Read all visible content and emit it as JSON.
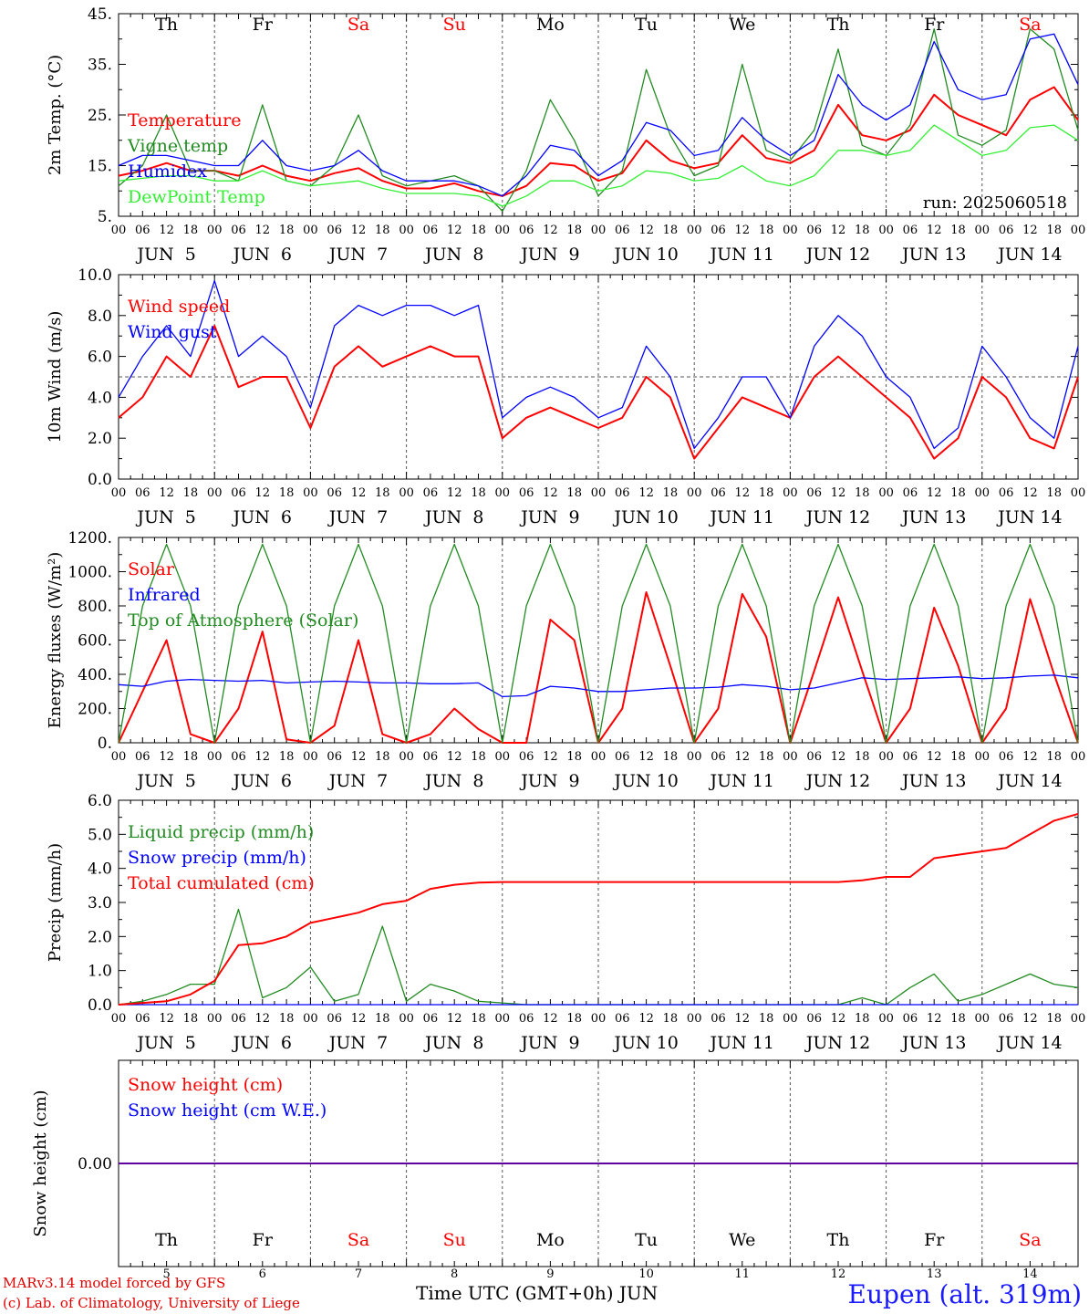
{
  "colors": {
    "red": "#ff0000",
    "green": "#228b22",
    "blue": "#0000ff",
    "lightgreen": "#33ee33",
    "axis": "#000000",
    "day_weekend": "#ff0000",
    "day_weekday": "#000000"
  },
  "days": [
    {
      "name": "Th",
      "weekend": false
    },
    {
      "name": "Fr",
      "weekend": false
    },
    {
      "name": "Sa",
      "weekend": true
    },
    {
      "name": "Su",
      "weekend": true
    },
    {
      "name": "Mo",
      "weekend": false
    },
    {
      "name": "Tu",
      "weekend": false
    },
    {
      "name": "We",
      "weekend": false
    },
    {
      "name": "Th",
      "weekend": false
    },
    {
      "name": "Fr",
      "weekend": false
    },
    {
      "name": "Sa",
      "weekend": true
    }
  ],
  "hour_tick_labels": [
    "00",
    "06",
    "12",
    "18"
  ],
  "final_tick_label": "00",
  "date_labels": [
    "JUN  5",
    "JUN  6",
    "JUN  7",
    "JUN  8",
    "JUN  9",
    "JUN 10",
    "JUN 11",
    "JUN 12",
    "JUN 13",
    "JUN 14"
  ],
  "day_numbers": [
    "5",
    "6",
    "7",
    "8",
    "9",
    "10",
    "11",
    "12",
    "13",
    "14"
  ],
  "footer": {
    "model": "MARv3.14 model forced by GFS",
    "credit": "(c) Lab. of Climatology, University of Liege",
    "xlabel": "Time UTC (GMT+0h) JUN",
    "station": "Eupen (alt. 319m)"
  },
  "chart_data": [
    {
      "type": "line",
      "ylabel": "2m Temp. (°C)",
      "ylim": [
        5,
        45
      ],
      "yticks": [
        5,
        15,
        25,
        35,
        45
      ],
      "ytick_labels": [
        "5.",
        "15.",
        "25.",
        "35.",
        "45."
      ],
      "annotation": "run: 2025060518",
      "x_hours": [
        0,
        6,
        12,
        18,
        24,
        30,
        36,
        42,
        48,
        54,
        60,
        66,
        72,
        78,
        84,
        90,
        96,
        102,
        108,
        114,
        120,
        126,
        132,
        138,
        144,
        150,
        156,
        162,
        168,
        174,
        180,
        186,
        192,
        198,
        204,
        210,
        216,
        222,
        228,
        234,
        240
      ],
      "series": [
        {
          "name": "Temperature",
          "color": "red",
          "values": [
            13,
            14,
            15.5,
            14,
            14,
            13,
            15,
            13,
            12,
            13.5,
            14.5,
            12,
            10.5,
            10.5,
            11.5,
            10,
            9,
            11,
            15.5,
            15,
            12,
            13.5,
            20,
            16,
            14.5,
            15.5,
            21,
            16.5,
            15.5,
            18,
            27,
            21,
            20,
            22,
            29,
            25,
            23,
            21,
            28,
            30.5,
            24
          ]
        },
        {
          "name": "Vigne temp",
          "color": "green",
          "values": [
            11,
            15,
            25,
            14,
            14,
            12,
            27,
            12,
            11,
            15,
            25,
            13,
            11,
            12,
            13,
            11,
            6,
            14,
            28,
            20,
            9,
            14,
            34,
            21,
            13,
            15,
            35,
            18,
            16,
            22,
            38,
            19,
            17,
            23,
            42,
            21,
            19,
            22,
            42,
            38,
            22
          ]
        },
        {
          "name": "Humidex",
          "color": "blue",
          "values": [
            15,
            17,
            17,
            16,
            15,
            15,
            20,
            15,
            14,
            15,
            18,
            14,
            12,
            12,
            12,
            11,
            9,
            13,
            19,
            18,
            13,
            16,
            23.5,
            22,
            17,
            18,
            24.5,
            20,
            17,
            20,
            33,
            27,
            24,
            27,
            39.5,
            30,
            28,
            29,
            40,
            41,
            31
          ]
        },
        {
          "name": "DewPoint Temp",
          "color": "lightgreen",
          "values": [
            12,
            12.5,
            13,
            13,
            12,
            12,
            14,
            12,
            11,
            11.5,
            12,
            10.5,
            9.5,
            9.5,
            9.5,
            9,
            7,
            9,
            12,
            12,
            10,
            11,
            14,
            13.5,
            12,
            12.5,
            15,
            12,
            11,
            13,
            18,
            18,
            17,
            18,
            23,
            20,
            17,
            18,
            22.5,
            23,
            20
          ]
        }
      ]
    },
    {
      "type": "line",
      "ylabel": "10m Wind (m/s)",
      "ylim": [
        0,
        10
      ],
      "yticks": [
        0,
        2,
        4,
        6,
        8,
        10
      ],
      "ytick_labels": [
        "0.0",
        "2.0",
        "4.0",
        "6.0",
        "8.0",
        "10.0"
      ],
      "reference_line": 5,
      "x_hours": [
        0,
        6,
        12,
        18,
        24,
        30,
        36,
        42,
        48,
        54,
        60,
        66,
        72,
        78,
        84,
        90,
        96,
        102,
        108,
        114,
        120,
        126,
        132,
        138,
        144,
        150,
        156,
        162,
        168,
        174,
        180,
        186,
        192,
        198,
        204,
        210,
        216,
        222,
        228,
        234,
        240
      ],
      "series": [
        {
          "name": "Wind speed",
          "color": "red",
          "values": [
            3,
            4,
            6,
            5,
            7.5,
            4.5,
            5,
            5,
            2.5,
            5.5,
            6.5,
            5.5,
            6,
            6.5,
            6,
            6,
            2,
            3,
            3.5,
            3,
            2.5,
            3,
            5,
            4,
            1,
            2.5,
            4,
            3.5,
            3,
            5,
            6,
            5,
            4,
            3,
            1,
            2,
            5,
            4,
            2,
            1.5,
            5
          ]
        },
        {
          "name": "Wind gust",
          "color": "blue",
          "values": [
            4,
            6,
            7.5,
            6,
            9.7,
            6,
            7,
            6,
            3.5,
            7.5,
            8.5,
            8,
            8.5,
            8.5,
            8,
            8.5,
            3,
            4,
            4.5,
            4,
            3,
            3.5,
            6.5,
            5,
            1.5,
            3,
            5,
            5,
            3,
            6.5,
            8,
            7,
            5,
            4,
            1.5,
            2.5,
            6.5,
            5,
            3,
            2,
            6.5
          ]
        }
      ]
    },
    {
      "type": "line",
      "ylabel": "Energy fluxes (W/m²)",
      "ylim": [
        0,
        1200
      ],
      "yticks": [
        0,
        200,
        400,
        600,
        800,
        1000,
        1200
      ],
      "ytick_labels": [
        "0.",
        "200.",
        "400.",
        "600.",
        "800.",
        "1000.",
        "1200."
      ],
      "x_hours": [
        0,
        6,
        12,
        18,
        24,
        30,
        36,
        42,
        48,
        54,
        60,
        66,
        72,
        78,
        84,
        90,
        96,
        102,
        108,
        114,
        120,
        126,
        132,
        138,
        144,
        150,
        156,
        162,
        168,
        174,
        180,
        186,
        192,
        198,
        204,
        210,
        216,
        222,
        228,
        234,
        240
      ],
      "series": [
        {
          "name": "Solar",
          "color": "red",
          "values": [
            0,
            300,
            600,
            50,
            0,
            200,
            650,
            20,
            0,
            100,
            600,
            50,
            0,
            50,
            200,
            80,
            0,
            0,
            720,
            600,
            0,
            200,
            880,
            450,
            0,
            200,
            870,
            620,
            0,
            420,
            850,
            420,
            0,
            200,
            790,
            450,
            0,
            200,
            840,
            400,
            0
          ]
        },
        {
          "name": "Infrared",
          "color": "blue",
          "values": [
            340,
            330,
            360,
            370,
            365,
            360,
            365,
            350,
            355,
            360,
            355,
            350,
            350,
            345,
            345,
            350,
            270,
            275,
            330,
            320,
            300,
            300,
            310,
            320,
            320,
            325,
            340,
            330,
            310,
            320,
            350,
            380,
            370,
            375,
            380,
            385,
            375,
            380,
            390,
            395,
            380
          ]
        },
        {
          "name": "Top of Atmosphere (Solar)",
          "color": "green",
          "values": [
            0,
            800,
            1160,
            800,
            0,
            800,
            1160,
            800,
            0,
            800,
            1160,
            800,
            0,
            800,
            1160,
            800,
            0,
            800,
            1160,
            800,
            0,
            800,
            1160,
            800,
            0,
            800,
            1160,
            800,
            0,
            800,
            1160,
            800,
            0,
            800,
            1160,
            800,
            0,
            800,
            1160,
            800,
            0
          ]
        }
      ]
    },
    {
      "type": "line",
      "ylabel": "Precip (mm/h)",
      "ylim": [
        0,
        6
      ],
      "yticks": [
        0,
        1,
        2,
        3,
        4,
        5,
        6
      ],
      "ytick_labels": [
        "0.0",
        "1.0",
        "2.0",
        "3.0",
        "4.0",
        "5.0",
        "6.0"
      ],
      "x_hours": [
        0,
        6,
        12,
        18,
        24,
        30,
        36,
        42,
        48,
        54,
        60,
        66,
        72,
        78,
        84,
        90,
        96,
        102,
        108,
        114,
        120,
        126,
        132,
        138,
        144,
        150,
        156,
        162,
        168,
        174,
        180,
        186,
        192,
        198,
        204,
        210,
        216,
        222,
        228,
        234,
        240
      ],
      "series": [
        {
          "name": "Liquid precip (mm/h)",
          "color": "green",
          "values": [
            0,
            0.1,
            0.3,
            0.6,
            0.6,
            2.8,
            0.2,
            0.5,
            1.1,
            0.1,
            0.3,
            2.3,
            0.1,
            0.6,
            0.4,
            0.1,
            0.05,
            0,
            0,
            0,
            0,
            0,
            0,
            0,
            0,
            0,
            0,
            0,
            0,
            0,
            0,
            0.2,
            0,
            0.5,
            0.9,
            0.1,
            0.3,
            0.6,
            0.9,
            0.6,
            0.5
          ]
        },
        {
          "name": "Snow precip (mm/h)",
          "color": "blue",
          "values": [
            0,
            0,
            0,
            0,
            0,
            0,
            0,
            0,
            0,
            0,
            0,
            0,
            0,
            0,
            0,
            0,
            0,
            0,
            0,
            0,
            0,
            0,
            0,
            0,
            0,
            0,
            0,
            0,
            0,
            0,
            0,
            0,
            0,
            0,
            0,
            0,
            0,
            0,
            0,
            0,
            0
          ]
        },
        {
          "name": "Total cumulated (cm)",
          "color": "red",
          "values": [
            0,
            0.05,
            0.1,
            0.3,
            0.7,
            1.75,
            1.8,
            2,
            2.4,
            2.55,
            2.7,
            2.95,
            3.05,
            3.4,
            3.52,
            3.58,
            3.6,
            3.6,
            3.6,
            3.6,
            3.6,
            3.6,
            3.6,
            3.6,
            3.6,
            3.6,
            3.6,
            3.6,
            3.6,
            3.6,
            3.6,
            3.65,
            3.75,
            3.75,
            4.3,
            4.4,
            4.5,
            4.6,
            5,
            5.4,
            5.6
          ]
        }
      ]
    },
    {
      "type": "line",
      "ylabel": "Snow height (cm)",
      "ylim": [
        -1,
        1
      ],
      "yticks": [
        0
      ],
      "ytick_labels": [
        "0.00"
      ],
      "x_hours": [
        0,
        240
      ],
      "series": [
        {
          "name": "Snow height (cm)",
          "color": "red",
          "values": [
            0,
            0
          ]
        },
        {
          "name": "Snow height (cm W.E.)",
          "color": "blue",
          "values": [
            0,
            0
          ]
        }
      ]
    }
  ]
}
